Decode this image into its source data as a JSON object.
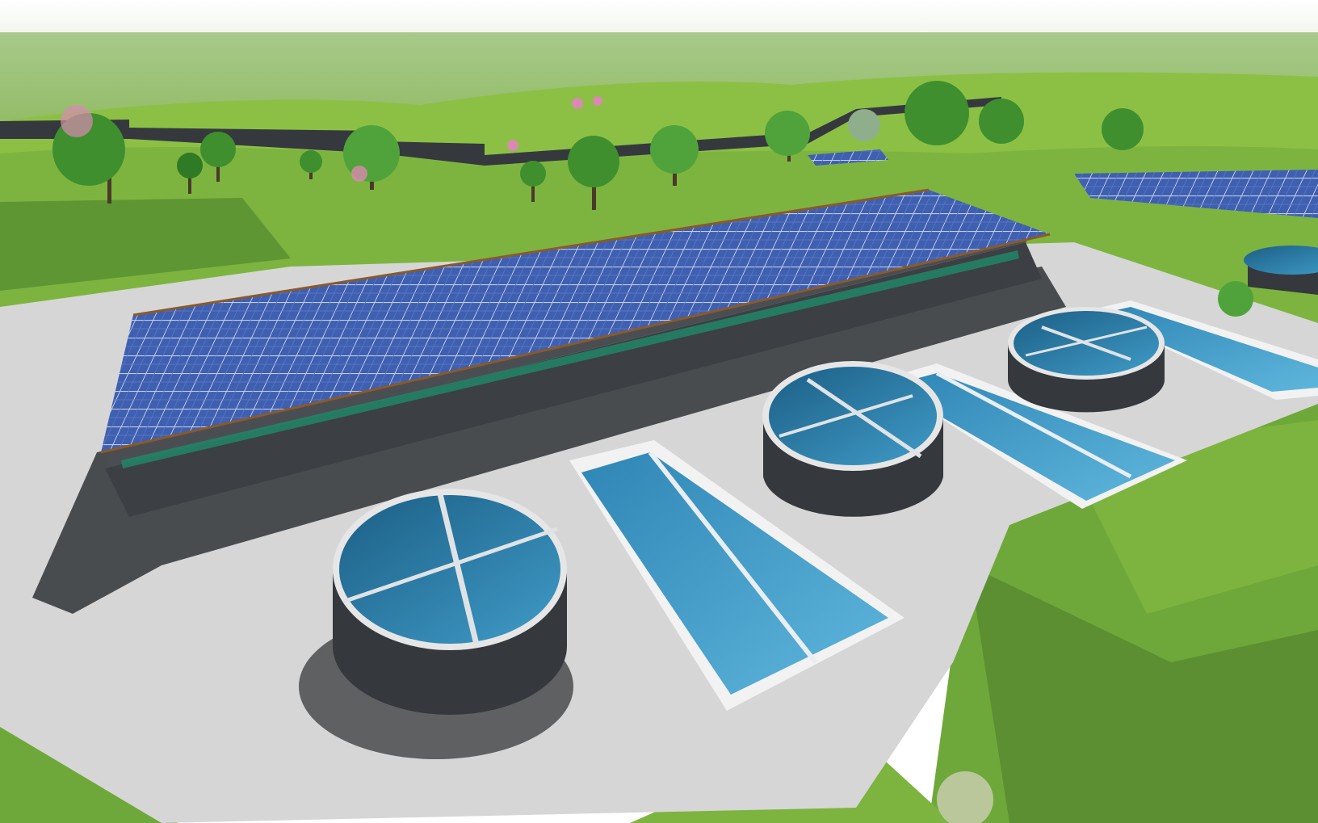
{
  "scene": {
    "kind": "3d-render",
    "subject": "water-treatment-plant-with-solar-roof",
    "palette": {
      "sky_top": "#ffffff",
      "sky_horizon": "#d9e6cf",
      "grass_light": "#8cc045",
      "grass_mid": "#6fa83a",
      "grass_dark": "#4f7f2a",
      "pad": "#d6d6d6",
      "pad_shadow": "#3a3d40",
      "building": "#3c3f43",
      "solar": "#3f5fb0",
      "solar_grid": "#c9d3ea",
      "water_deep": "#1c5f86",
      "water_light": "#3f9bc7",
      "tank_wall": "#35393d",
      "tree_green": "#3f8f2f",
      "tree_pink": "#d98ab0",
      "wall": "#35393e"
    },
    "elements": [
      "sky",
      "rolling-hills",
      "retaining-wall",
      "trees",
      "concrete-pad",
      "solar-roofed-building",
      "circular-clarifier-tanks",
      "rectangular-basins",
      "distant-solar-array"
    ]
  }
}
